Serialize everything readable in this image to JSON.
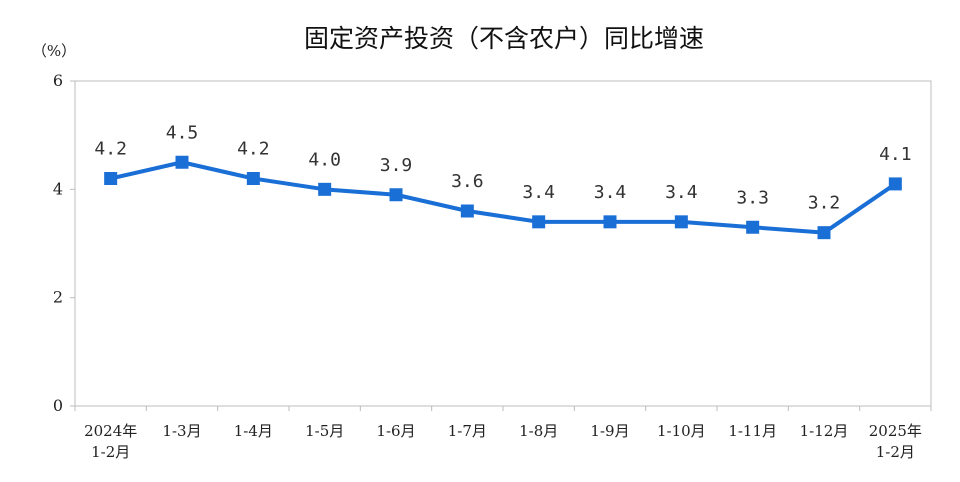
{
  "chart_data": {
    "type": "line",
    "title": "固定资产投资（不含农户）同比增速",
    "ylabel": "（%）",
    "ylim": [
      0,
      6
    ],
    "yticks": [
      0,
      2,
      4,
      6
    ],
    "categories": [
      [
        "2024年",
        "1-2月"
      ],
      [
        "1-3月"
      ],
      [
        "1-4月"
      ],
      [
        "1-5月"
      ],
      [
        "1-6月"
      ],
      [
        "1-7月"
      ],
      [
        "1-8月"
      ],
      [
        "1-9月"
      ],
      [
        "1-10月"
      ],
      [
        "1-11月"
      ],
      [
        "1-12月"
      ],
      [
        "2025年",
        "1-2月"
      ]
    ],
    "series": [
      {
        "values": [
          4.2,
          4.5,
          4.2,
          4.0,
          3.9,
          3.6,
          3.4,
          3.4,
          3.4,
          3.3,
          3.2,
          4.1
        ],
        "labels": [
          "4.2",
          "4.5",
          "4.2",
          "4.0",
          "3.9",
          "3.6",
          "3.4",
          "3.4",
          "3.4",
          "3.3",
          "3.2",
          "4.1"
        ],
        "color": "#1a6fd6"
      }
    ],
    "grid": false,
    "legend": "none"
  }
}
